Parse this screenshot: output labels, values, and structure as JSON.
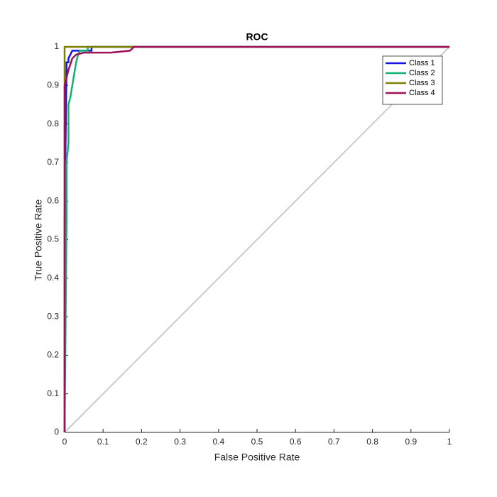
{
  "chart_data": {
    "type": "line",
    "title": "ROC",
    "x_label": "False Positive Rate",
    "y_label": "True Positive Rate",
    "xlim": [
      0,
      1
    ],
    "ylim": [
      0,
      1
    ],
    "xticks": [
      0,
      0.1,
      0.2,
      0.3,
      0.4,
      0.5,
      0.6,
      0.7,
      0.8,
      0.9,
      1
    ],
    "yticks": [
      0,
      0.1,
      0.2,
      0.3,
      0.4,
      0.5,
      0.6,
      0.7,
      0.8,
      0.9,
      1
    ],
    "grid": false,
    "legend_position": "top-right",
    "reference_line": {
      "x": [
        0,
        1
      ],
      "y": [
        0,
        1
      ],
      "color": "#cccccc"
    },
    "series": [
      {
        "name": "Class 1",
        "color": "#1515e0",
        "x": [
          0,
          0,
          0.005,
          0.005,
          0.01,
          0.01,
          0.015,
          0.02,
          0.03,
          0.05,
          0.07,
          0.07,
          1
        ],
        "values": [
          0,
          0.55,
          0.95,
          0.96,
          0.96,
          0.97,
          0.98,
          0.99,
          0.99,
          0.99,
          0.99,
          1,
          1
        ]
      },
      {
        "name": "Class 2",
        "color": "#12b072",
        "x": [
          0,
          0.005,
          0.005,
          0.01,
          0.01,
          0.015,
          0.02,
          0.025,
          0.03,
          0.035,
          0.04,
          0.05,
          0.06,
          0.06,
          1
        ],
        "values": [
          0,
          0.55,
          0.7,
          0.75,
          0.85,
          0.87,
          0.9,
          0.93,
          0.96,
          0.98,
          0.99,
          0.99,
          0.99,
          1,
          1
        ]
      },
      {
        "name": "Class 3",
        "color": "#808000",
        "x": [
          0,
          0,
          1
        ],
        "values": [
          0,
          1,
          1
        ]
      },
      {
        "name": "Class 4",
        "color": "#a0105a",
        "x": [
          0,
          0,
          0.005,
          0.01,
          0.02,
          0.03,
          0.05,
          0.12,
          0.17,
          0.18,
          1
        ],
        "values": [
          0,
          0.9,
          0.92,
          0.94,
          0.97,
          0.98,
          0.985,
          0.985,
          0.99,
          1,
          1
        ]
      }
    ]
  }
}
